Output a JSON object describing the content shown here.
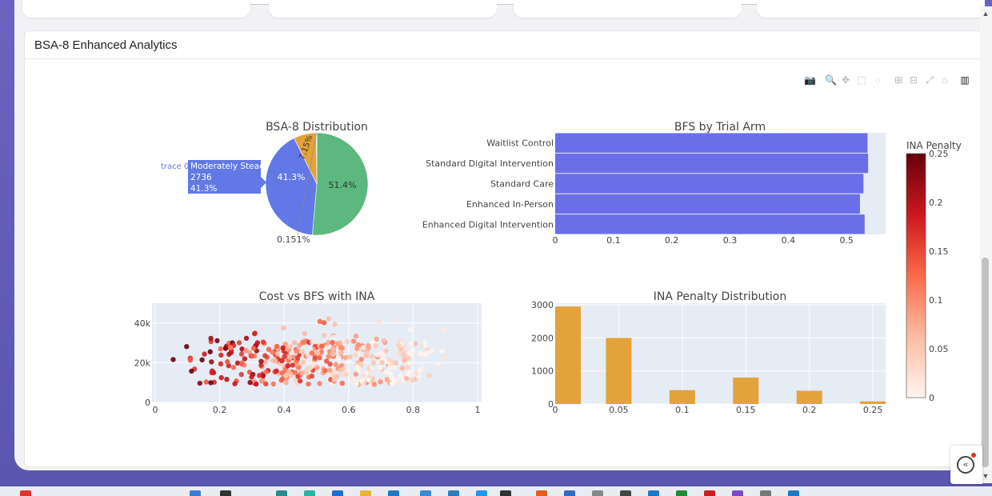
{
  "card": {
    "title": "BSA-8 Enhanced Analytics"
  },
  "modebar": [
    {
      "name": "camera-icon",
      "glyph": "📷"
    },
    {
      "name": "zoom-icon",
      "glyph": "🔍"
    },
    {
      "name": "pan-icon",
      "glyph": "✥"
    },
    {
      "name": "box-select-icon",
      "glyph": "⬚"
    },
    {
      "name": "lasso-select-icon",
      "glyph": "◌"
    },
    {
      "name": "zoom-in-icon",
      "glyph": "⊞"
    },
    {
      "name": "zoom-out-icon",
      "glyph": "⊟"
    },
    {
      "name": "autoscale-icon",
      "glyph": "⤢"
    },
    {
      "name": "reset-axes-icon",
      "glyph": "⌂"
    },
    {
      "name": "plotly-logo-icon",
      "glyph": "▥"
    }
  ],
  "chart_data": [
    {
      "type": "pie",
      "title": "BSA-8 Distribution",
      "slices": [
        {
          "label": "",
          "value": 51.4,
          "text": "51.4%",
          "color": "#5cb87e"
        },
        {
          "label": "Moderately Steady",
          "value": 41.3,
          "text": "41.3%",
          "color": "#6178e6"
        },
        {
          "label": "",
          "value": 7.15,
          "text": "7.15%",
          "color": "#e4a23b"
        },
        {
          "label": "",
          "value": 0.151,
          "text": "0.151%",
          "color": "#d95545"
        }
      ],
      "hover": {
        "trace": "trace 0",
        "label": "Moderately Steady",
        "count": "2736",
        "percent": "41.3%"
      }
    },
    {
      "type": "bar",
      "orientation": "horizontal",
      "title": "BFS by Trial Arm",
      "categories": [
        "Waitlist Control",
        "Standard Digital Intervention",
        "Standard Care",
        "Enhanced In-Person",
        "Enhanced Digital Intervention"
      ],
      "values": [
        0.536,
        0.537,
        0.529,
        0.523,
        0.531
      ],
      "xticks": [
        "0",
        "0.1",
        "0.2",
        "0.3",
        "0.4",
        "0.5"
      ],
      "xlim": [
        0,
        0.567
      ],
      "color": "#6b6ee9"
    },
    {
      "type": "scatter",
      "title": "Cost vs BFS with INA",
      "xticks": [
        "0",
        "0.2",
        "0.4",
        "0.6",
        "0.8",
        "1"
      ],
      "yticks": [
        "0",
        "20k",
        "40k"
      ],
      "xlim": [
        0,
        1
      ],
      "ylim": [
        0,
        50000
      ],
      "colorbar": {
        "title": "INA Penalty",
        "ticks": [
          "0",
          "0.05",
          "0.1",
          "0.15",
          "0.2",
          "0.25"
        ],
        "range": [
          0,
          0.25
        ],
        "colorscale": "Reds"
      },
      "point_count": 400
    },
    {
      "type": "bar",
      "title": "INA Penalty Distribution",
      "x": [
        0,
        0.05,
        0.1,
        0.15,
        0.2,
        0.25
      ],
      "values": [
        2950,
        2000,
        420,
        800,
        400,
        80
      ],
      "xticks": [
        "0",
        "0.05",
        "0.1",
        "0.15",
        "0.2",
        "0.25"
      ],
      "yticks": [
        "0",
        "1000",
        "2000",
        "3000"
      ],
      "ylim": [
        0,
        3000
      ],
      "color": "#e4a23b"
    }
  ],
  "colors": {
    "purple": "#5b57b0",
    "plot_bg": "#e5ecf6"
  }
}
